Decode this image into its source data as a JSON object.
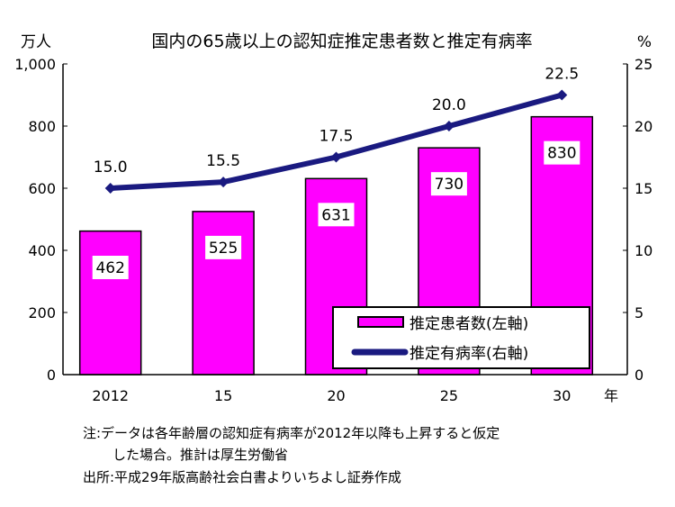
{
  "chart_data": {
    "type": "bar+line",
    "title": "国内の65歳以上の認知症推定患者数と推定有病率",
    "categories": [
      "2012",
      "15",
      "20",
      "25",
      "30"
    ],
    "x_unit": "年",
    "series": [
      {
        "name": "推定患者数(左軸)",
        "type": "bar",
        "axis": "left",
        "values": [
          462,
          525,
          631,
          730,
          830
        ],
        "color": "#ff00ff"
      },
      {
        "name": "推定有病率(右軸)",
        "type": "line",
        "axis": "right",
        "values": [
          15.0,
          15.5,
          17.5,
          20.0,
          22.5
        ],
        "color": "#1a1a80"
      }
    ],
    "left_axis": {
      "unit": "万人",
      "ylim": [
        0,
        1000
      ],
      "ticks": [
        "0",
        "200",
        "400",
        "600",
        "800",
        "1,000"
      ]
    },
    "right_axis": {
      "unit": "%",
      "ylim": [
        0,
        25
      ],
      "ticks": [
        "0",
        "5",
        "10",
        "15",
        "20",
        "25"
      ]
    },
    "bar_labels": [
      "462",
      "525",
      "631",
      "730",
      "830"
    ],
    "line_labels": [
      "15.0",
      "15.5",
      "17.5",
      "20.0",
      "22.5"
    ],
    "legend": "bottom-right-inside",
    "grid": false
  },
  "notes": {
    "note1": "注:データは各年齢層の認知症有病率が2012年以降も上昇すると仮定",
    "note2": "した場合。推計は厚生労働省",
    "source": "出所:平成29年版高齢社会白書よりいちよし証券作成"
  }
}
